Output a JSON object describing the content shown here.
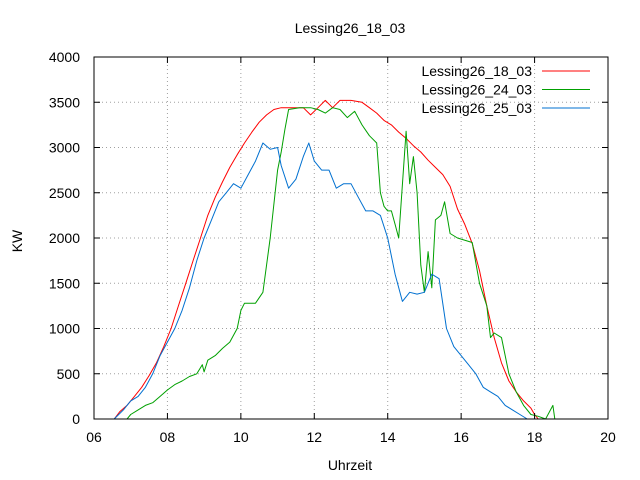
{
  "chart_data": {
    "type": "line",
    "title": "Lessing26_18_03",
    "xlabel": "Uhrzeit",
    "ylabel": "KW",
    "xlim": [
      6,
      20
    ],
    "ylim": [
      0,
      4000
    ],
    "xticks": [
      6,
      8,
      10,
      12,
      14,
      16,
      18,
      20
    ],
    "xtick_labels": [
      "06",
      "08",
      "10",
      "12",
      "14",
      "16",
      "18",
      "20"
    ],
    "yticks": [
      0,
      500,
      1000,
      1500,
      2000,
      2500,
      3000,
      3500,
      4000
    ],
    "grid": true,
    "legend_position": "top-right",
    "series": [
      {
        "name": "Lessing26_18_03",
        "color": "#ff0000",
        "points": [
          [
            6.55,
            0
          ],
          [
            6.7,
            80
          ],
          [
            6.9,
            150
          ],
          [
            7.1,
            250
          ],
          [
            7.3,
            350
          ],
          [
            7.5,
            480
          ],
          [
            7.7,
            620
          ],
          [
            7.9,
            800
          ],
          [
            8.1,
            1000
          ],
          [
            8.3,
            1250
          ],
          [
            8.5,
            1500
          ],
          [
            8.7,
            1750
          ],
          [
            8.9,
            2000
          ],
          [
            9.1,
            2250
          ],
          [
            9.3,
            2450
          ],
          [
            9.5,
            2620
          ],
          [
            9.7,
            2780
          ],
          [
            9.9,
            2920
          ],
          [
            10.1,
            3050
          ],
          [
            10.3,
            3170
          ],
          [
            10.5,
            3280
          ],
          [
            10.7,
            3360
          ],
          [
            10.9,
            3420
          ],
          [
            11.1,
            3440
          ],
          [
            11.4,
            3440
          ],
          [
            11.7,
            3440
          ],
          [
            11.9,
            3360
          ],
          [
            12.1,
            3440
          ],
          [
            12.3,
            3520
          ],
          [
            12.5,
            3440
          ],
          [
            12.7,
            3520
          ],
          [
            13.0,
            3520
          ],
          [
            13.3,
            3500
          ],
          [
            13.5,
            3440
          ],
          [
            13.7,
            3380
          ],
          [
            13.9,
            3300
          ],
          [
            14.1,
            3250
          ],
          [
            14.3,
            3170
          ],
          [
            14.5,
            3100
          ],
          [
            14.7,
            3020
          ],
          [
            14.9,
            2950
          ],
          [
            15.1,
            2860
          ],
          [
            15.3,
            2780
          ],
          [
            15.5,
            2700
          ],
          [
            15.7,
            2570
          ],
          [
            15.9,
            2320
          ],
          [
            16.1,
            2150
          ],
          [
            16.3,
            1940
          ],
          [
            16.5,
            1640
          ],
          [
            16.7,
            1250
          ],
          [
            16.9,
            900
          ],
          [
            17.1,
            620
          ],
          [
            17.3,
            420
          ],
          [
            17.5,
            300
          ],
          [
            17.7,
            200
          ],
          [
            17.9,
            120
          ],
          [
            18.0,
            50
          ],
          [
            18.1,
            0
          ]
        ]
      },
      {
        "name": "Lessing26_24_03",
        "color": "#00a000",
        "points": [
          [
            6.9,
            0
          ],
          [
            7.0,
            50
          ],
          [
            7.2,
            100
          ],
          [
            7.4,
            150
          ],
          [
            7.6,
            180
          ],
          [
            7.8,
            250
          ],
          [
            8.0,
            320
          ],
          [
            8.2,
            380
          ],
          [
            8.4,
            420
          ],
          [
            8.6,
            470
          ],
          [
            8.8,
            500
          ],
          [
            8.95,
            600
          ],
          [
            9.0,
            520
          ],
          [
            9.1,
            650
          ],
          [
            9.3,
            700
          ],
          [
            9.5,
            780
          ],
          [
            9.7,
            850
          ],
          [
            9.9,
            1000
          ],
          [
            10.0,
            1200
          ],
          [
            10.1,
            1280
          ],
          [
            10.4,
            1280
          ],
          [
            10.6,
            1400
          ],
          [
            10.8,
            2000
          ],
          [
            11.0,
            2750
          ],
          [
            11.1,
            2950
          ],
          [
            11.2,
            3200
          ],
          [
            11.3,
            3420
          ],
          [
            11.6,
            3440
          ],
          [
            11.9,
            3440
          ],
          [
            12.1,
            3420
          ],
          [
            12.3,
            3380
          ],
          [
            12.5,
            3440
          ],
          [
            12.7,
            3420
          ],
          [
            12.9,
            3330
          ],
          [
            13.1,
            3400
          ],
          [
            13.3,
            3250
          ],
          [
            13.5,
            3130
          ],
          [
            13.7,
            3050
          ],
          [
            13.8,
            2500
          ],
          [
            13.9,
            2350
          ],
          [
            14.0,
            2300
          ],
          [
            14.1,
            2300
          ],
          [
            14.2,
            2150
          ],
          [
            14.3,
            2000
          ],
          [
            14.5,
            3180
          ],
          [
            14.6,
            2600
          ],
          [
            14.7,
            2900
          ],
          [
            14.8,
            2500
          ],
          [
            14.9,
            1700
          ],
          [
            15.0,
            1400
          ],
          [
            15.1,
            1850
          ],
          [
            15.2,
            1450
          ],
          [
            15.3,
            2200
          ],
          [
            15.45,
            2250
          ],
          [
            15.55,
            2400
          ],
          [
            15.7,
            2050
          ],
          [
            15.9,
            2000
          ],
          [
            16.3,
            1950
          ],
          [
            16.5,
            1500
          ],
          [
            16.7,
            1250
          ],
          [
            16.8,
            900
          ],
          [
            16.9,
            950
          ],
          [
            17.1,
            900
          ],
          [
            17.3,
            500
          ],
          [
            17.5,
            300
          ],
          [
            17.7,
            150
          ],
          [
            17.9,
            50
          ],
          [
            18.1,
            30
          ],
          [
            18.3,
            0
          ],
          [
            18.5,
            150
          ],
          [
            18.55,
            0
          ]
        ]
      },
      {
        "name": "Lessing26_25_03",
        "color": "#0070d0",
        "points": [
          [
            6.55,
            0
          ],
          [
            6.8,
            100
          ],
          [
            7.0,
            200
          ],
          [
            7.2,
            250
          ],
          [
            7.4,
            350
          ],
          [
            7.6,
            500
          ],
          [
            7.8,
            700
          ],
          [
            8.0,
            850
          ],
          [
            8.2,
            1000
          ],
          [
            8.4,
            1200
          ],
          [
            8.6,
            1450
          ],
          [
            8.8,
            1750
          ],
          [
            9.0,
            2000
          ],
          [
            9.2,
            2200
          ],
          [
            9.4,
            2400
          ],
          [
            9.6,
            2500
          ],
          [
            9.8,
            2600
          ],
          [
            10.0,
            2550
          ],
          [
            10.2,
            2700
          ],
          [
            10.4,
            2850
          ],
          [
            10.6,
            3050
          ],
          [
            10.8,
            2980
          ],
          [
            11.0,
            3000
          ],
          [
            11.1,
            2800
          ],
          [
            11.3,
            2550
          ],
          [
            11.5,
            2650
          ],
          [
            11.7,
            2900
          ],
          [
            11.85,
            3050
          ],
          [
            12.0,
            2850
          ],
          [
            12.2,
            2750
          ],
          [
            12.4,
            2750
          ],
          [
            12.6,
            2550
          ],
          [
            12.8,
            2600
          ],
          [
            13.0,
            2600
          ],
          [
            13.2,
            2450
          ],
          [
            13.4,
            2300
          ],
          [
            13.6,
            2300
          ],
          [
            13.8,
            2250
          ],
          [
            14.0,
            2000
          ],
          [
            14.2,
            1600
          ],
          [
            14.4,
            1300
          ],
          [
            14.6,
            1400
          ],
          [
            14.8,
            1380
          ],
          [
            15.0,
            1400
          ],
          [
            15.2,
            1600
          ],
          [
            15.4,
            1550
          ],
          [
            15.6,
            1000
          ],
          [
            15.8,
            800
          ],
          [
            16.0,
            700
          ],
          [
            16.2,
            600
          ],
          [
            16.4,
            500
          ],
          [
            16.6,
            350
          ],
          [
            16.8,
            300
          ],
          [
            17.0,
            250
          ],
          [
            17.2,
            150
          ],
          [
            17.4,
            100
          ],
          [
            17.6,
            50
          ],
          [
            17.8,
            0
          ]
        ]
      }
    ]
  }
}
